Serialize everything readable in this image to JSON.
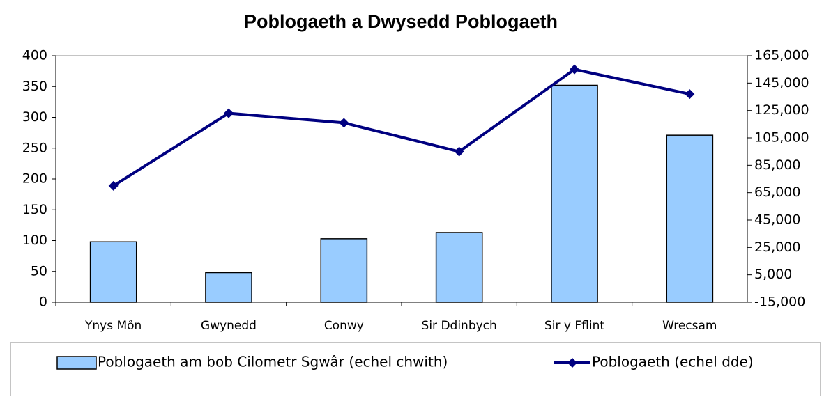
{
  "chart_data": {
    "type": "bar",
    "title": "Poblogaeth a Dwysedd Poblogaeth",
    "categories": [
      "Ynys Môn",
      "Gwynedd",
      "Conwy",
      "Sir Ddinbych",
      "Sir y Fflint",
      "Wrecsam"
    ],
    "series": [
      {
        "name": "Poblogaeth am bob Cilometr Sgwâr (echel chwith)",
        "type": "bar",
        "color": "#99ccff",
        "values": [
          98,
          48,
          103,
          113,
          352,
          271
        ]
      },
      {
        "name": "Poblogaeth (echel dde)",
        "type": "line",
        "axis": "y2",
        "color": "#000080",
        "values": [
          70000,
          123000,
          116000,
          95000,
          155000,
          137000
        ]
      }
    ],
    "ylim": [
      0,
      400
    ],
    "yticks": [
      0,
      50,
      100,
      150,
      200,
      250,
      300,
      350,
      400
    ],
    "y2lim": [
      -15000,
      165000
    ],
    "y2ticks": [
      {
        "value": -15000,
        "label": "-15,000"
      },
      {
        "value": 5000,
        "label": "5,000"
      },
      {
        "value": 25000,
        "label": "25,000"
      },
      {
        "value": 45000,
        "label": "45,000"
      },
      {
        "value": 65000,
        "label": "65,000"
      },
      {
        "value": 85000,
        "label": "85,000"
      },
      {
        "value": 105000,
        "label": "105,000"
      },
      {
        "value": 125000,
        "label": "125,000"
      },
      {
        "value": 145000,
        "label": "145,000"
      },
      {
        "value": 165000,
        "label": "165,000"
      }
    ],
    "grid": false,
    "legend": "bottom"
  }
}
